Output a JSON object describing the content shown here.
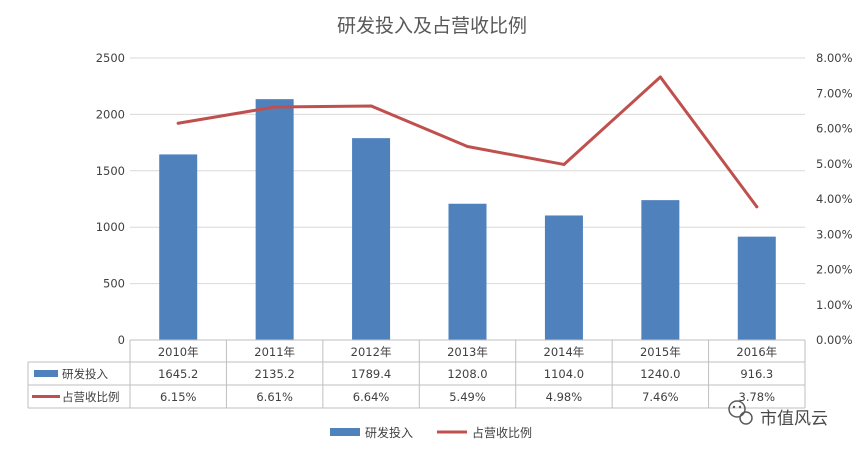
{
  "chart_data": {
    "type": "bar",
    "title": "研发投入及占营收比例",
    "categories": [
      "2010年",
      "2011年",
      "2012年",
      "2013年",
      "2014年",
      "2015年",
      "2016年"
    ],
    "series": [
      {
        "name": "研发投入",
        "type": "bar",
        "axis": "left",
        "values": [
          1645.2,
          2135.2,
          1789.4,
          1208.0,
          1104.0,
          1240.0,
          916.3
        ],
        "table_labels": [
          "1645.2",
          "2135.2",
          "1789.4",
          "1208.0",
          "1104.0",
          "1240.0",
          "916.3"
        ],
        "color": "#4f81bd"
      },
      {
        "name": "占营收比例",
        "type": "line",
        "axis": "right",
        "values": [
          6.15,
          6.61,
          6.64,
          5.49,
          4.98,
          7.46,
          3.78
        ],
        "table_labels": [
          "6.15%",
          "6.61%",
          "6.64%",
          "5.49%",
          "4.98%",
          "7.46%",
          "3.78%"
        ],
        "color": "#c0504d"
      }
    ],
    "y_left": {
      "ylim": [
        0,
        2500
      ],
      "ticks": [
        0,
        500,
        1000,
        1500,
        2000,
        2500
      ]
    },
    "y_right": {
      "ylim": [
        0,
        8
      ],
      "ticks": [
        "0.00%",
        "1.00%",
        "2.00%",
        "3.00%",
        "4.00%",
        "5.00%",
        "6.00%",
        "7.00%",
        "8.00%"
      ]
    },
    "grid": true,
    "legend_position": "bottom",
    "data_table": true
  },
  "watermark": {
    "text": "市值风云",
    "icon": "wechat-icon"
  }
}
